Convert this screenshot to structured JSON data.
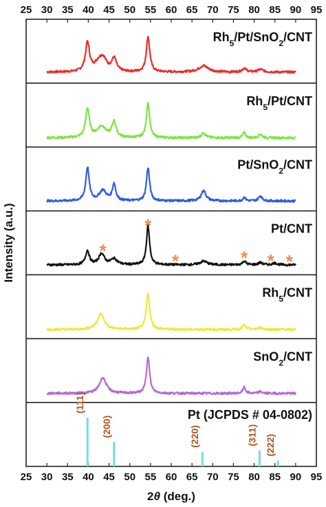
{
  "chart_data": {
    "type": "line",
    "xlabel": "2θ (deg.)",
    "xlabel_main": "2",
    "xlabel_theta": "θ",
    "xlabel_unit": " (deg.)",
    "ylabel": "Intensity (a.u.)",
    "xlim": [
      25,
      95
    ],
    "xticks": [
      25,
      30,
      35,
      40,
      45,
      50,
      55,
      60,
      65,
      70,
      75,
      80,
      85,
      90,
      95
    ],
    "x_range_data": [
      30,
      90
    ],
    "grid": false,
    "series": [
      {
        "name": "Rh5/Pt/SnO2/CNT",
        "label_parts": [
          "Rh",
          "5",
          "/Pt/SnO",
          "2",
          "/CNT"
        ],
        "color": "#ee2b2b",
        "baseline": 0.15,
        "peaks": [
          [
            39.8,
            0.78,
            0.6
          ],
          [
            42.5,
            0.22,
            1.2
          ],
          [
            43.6,
            0.3,
            1.0
          ],
          [
            46.2,
            0.35,
            0.7
          ],
          [
            54.4,
            0.95,
            0.5
          ],
          [
            67.8,
            0.17,
            1.4
          ],
          [
            77.6,
            0.1,
            0.6
          ],
          [
            81.5,
            0.07,
            0.8
          ]
        ]
      },
      {
        "name": "Rh5/Pt/CNT",
        "label_parts": [
          "Rh",
          "5",
          "/Pt/CNT",
          "",
          ""
        ],
        "color": "#7fe33f",
        "baseline": 0.1,
        "peaks": [
          [
            39.8,
            0.78,
            0.55
          ],
          [
            43.2,
            0.3,
            1.3
          ],
          [
            46.2,
            0.42,
            0.6
          ],
          [
            54.4,
            0.95,
            0.45
          ],
          [
            67.8,
            0.14,
            0.6
          ],
          [
            77.6,
            0.14,
            0.4
          ],
          [
            81.5,
            0.1,
            0.5
          ]
        ]
      },
      {
        "name": "Pt/SnO2/CNT",
        "label_parts": [
          "Pt/SnO",
          "2",
          "/CNT",
          "",
          ""
        ],
        "color": "#2e5be0",
        "baseline": 0.12,
        "peaks": [
          [
            39.8,
            0.9,
            0.5
          ],
          [
            43.5,
            0.28,
            1.0
          ],
          [
            46.2,
            0.45,
            0.5
          ],
          [
            54.4,
            0.9,
            0.45
          ],
          [
            67.8,
            0.28,
            0.7
          ],
          [
            77.6,
            0.1,
            0.4
          ],
          [
            81.5,
            0.14,
            0.5
          ]
        ]
      },
      {
        "name": "Pt/CNT",
        "label_parts": [
          "Pt/CNT",
          "",
          "",
          "",
          ""
        ],
        "color": "#111111",
        "baseline": 0.12,
        "peaks": [
          [
            39.8,
            0.38,
            0.55
          ],
          [
            43.2,
            0.3,
            0.8
          ],
          [
            46.2,
            0.16,
            0.9
          ],
          [
            54.4,
            1.05,
            0.45
          ],
          [
            67.8,
            0.1,
            1.0
          ],
          [
            77.6,
            0.1,
            0.5
          ],
          [
            81.5,
            0.06,
            0.6
          ],
          [
            85.0,
            0.05,
            0.6
          ]
        ]
      },
      {
        "name": "Rh5/CNT",
        "label_parts": [
          "Rh",
          "5",
          "/CNT",
          "",
          ""
        ],
        "color": "#eaea3a",
        "baseline": 0.1,
        "peaks": [
          [
            43.0,
            0.42,
            1.0
          ],
          [
            54.4,
            0.95,
            0.5
          ],
          [
            77.6,
            0.12,
            0.5
          ],
          [
            81.5,
            0.05,
            0.6
          ]
        ]
      },
      {
        "name": "SnO2/CNT",
        "label_parts": [
          "SnO",
          "2",
          "/CNT",
          "",
          ""
        ],
        "color": "#b46ad6",
        "baseline": 0.1,
        "peaks": [
          [
            43.5,
            0.42,
            1.0
          ],
          [
            54.4,
            1.0,
            0.45
          ],
          [
            77.6,
            0.16,
            0.4
          ],
          [
            81.5,
            0.05,
            0.5
          ]
        ]
      }
    ],
    "stars": {
      "text": "*",
      "color": "#f08a55",
      "x": [
        43.5,
        54.4,
        61.0,
        77.6,
        84.0,
        88.5
      ]
    },
    "reference": {
      "label": "Pt  (JCPDS # 04-0802)",
      "color": "#6de0d8",
      "lines": [
        {
          "x": 39.8,
          "intensity": 1.0,
          "hkl": "(111)"
        },
        {
          "x": 46.2,
          "intensity": 0.5,
          "hkl": "(200)"
        },
        {
          "x": 67.5,
          "intensity": 0.3,
          "hkl": "(220)"
        },
        {
          "x": 81.3,
          "intensity": 0.33,
          "hkl": "(311)"
        },
        {
          "x": 85.7,
          "intensity": 0.12,
          "hkl": "(222)"
        }
      ]
    }
  }
}
